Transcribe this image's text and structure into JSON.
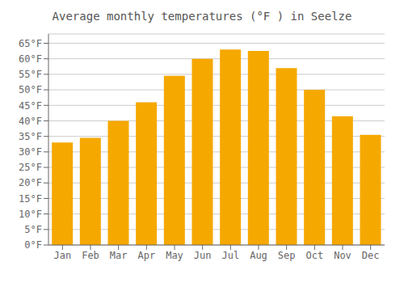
{
  "chart_data": {
    "type": "bar",
    "title": "Average monthly temperatures (°F ) in Seelze",
    "categories": [
      "Jan",
      "Feb",
      "Mar",
      "Apr",
      "May",
      "Jun",
      "Jul",
      "Aug",
      "Sep",
      "Oct",
      "Nov",
      "Dec"
    ],
    "values": [
      33,
      34.5,
      40,
      46,
      54.5,
      60,
      63,
      62.5,
      57,
      50,
      41.5,
      35.5
    ],
    "color": "#F5A800",
    "ylim": [
      0,
      68
    ],
    "yticks": [
      {
        "value": 0,
        "label": "0°F"
      },
      {
        "value": 5,
        "label": "5°F"
      },
      {
        "value": 10,
        "label": "10°F"
      },
      {
        "value": 15,
        "label": "15°F"
      },
      {
        "value": 20,
        "label": "20°F"
      },
      {
        "value": 25,
        "label": "25°F"
      },
      {
        "value": 30,
        "label": "30°F"
      },
      {
        "value": 35,
        "label": "35°F"
      },
      {
        "value": 40,
        "label": "40°F"
      },
      {
        "value": 45,
        "label": "45°F"
      },
      {
        "value": 50,
        "label": "50°F"
      },
      {
        "value": 55,
        "label": "55°F"
      },
      {
        "value": 60,
        "label": "60°F"
      },
      {
        "value": 65,
        "label": "65°F"
      }
    ],
    "grid": true
  }
}
